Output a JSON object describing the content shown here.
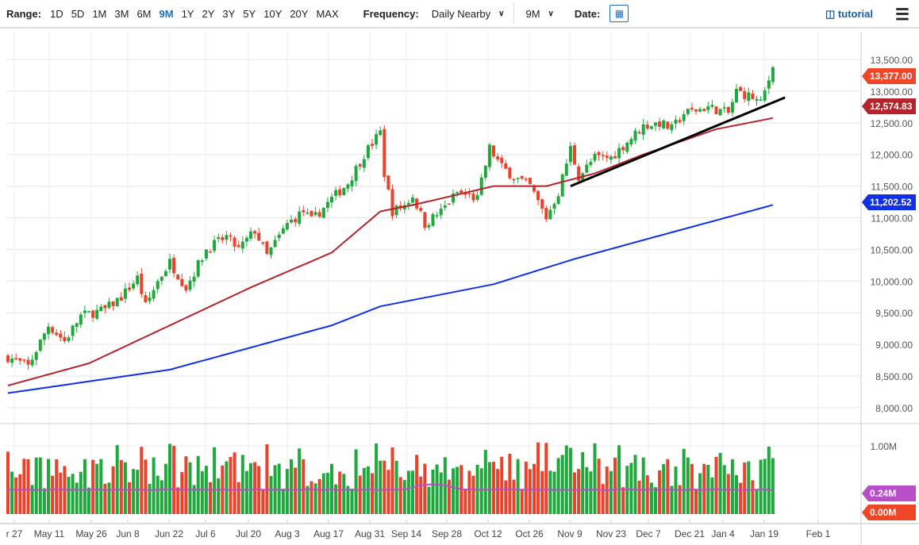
{
  "toolbar": {
    "range_label": "Range:",
    "ranges": [
      "1D",
      "5D",
      "1M",
      "3M",
      "6M",
      "9M",
      "1Y",
      "2Y",
      "3Y",
      "5Y",
      "10Y",
      "20Y",
      "MAX"
    ],
    "active_range": "9M",
    "frequency_label": "Frequency:",
    "frequency_value": "Daily Nearby",
    "period_value": "9M",
    "date_label": "Date:",
    "tutorial_label": "tutorial"
  },
  "colors": {
    "up": "#1fa83c",
    "down": "#e9432b",
    "ma50": "#b5232c",
    "ma200": "#1030e8",
    "vol_ma": "#b94ec9",
    "accent": "#1a6fc4"
  },
  "chart_data": {
    "type": "candlestick",
    "trading_days": 190,
    "price_keypoints": [
      [
        0,
        8800
      ],
      [
        5,
        8650
      ],
      [
        10,
        9300
      ],
      [
        14,
        9050
      ],
      [
        18,
        9450
      ],
      [
        24,
        9550
      ],
      [
        28,
        9750
      ],
      [
        32,
        10050
      ],
      [
        34,
        9600
      ],
      [
        37,
        10000
      ],
      [
        40,
        10300
      ],
      [
        44,
        9900
      ],
      [
        49,
        10500
      ],
      [
        54,
        10700
      ],
      [
        57,
        10500
      ],
      [
        61,
        10800
      ],
      [
        64,
        10400
      ],
      [
        69,
        10900
      ],
      [
        73,
        11100
      ],
      [
        75,
        10950
      ],
      [
        80,
        11300
      ],
      [
        84,
        11550
      ],
      [
        88,
        12000
      ],
      [
        92,
        12350
      ],
      [
        93,
        11700
      ],
      [
        95,
        11100
      ],
      [
        98,
        11200
      ],
      [
        100,
        11350
      ],
      [
        103,
        10900
      ],
      [
        107,
        11100
      ],
      [
        111,
        11400
      ],
      [
        116,
        11300
      ],
      [
        119,
        12100
      ],
      [
        122,
        11800
      ],
      [
        125,
        11650
      ],
      [
        129,
        11500
      ],
      [
        133,
        11000
      ],
      [
        136,
        11400
      ],
      [
        139,
        12100
      ],
      [
        141,
        11650
      ],
      [
        145,
        11950
      ],
      [
        149,
        11950
      ],
      [
        153,
        12200
      ],
      [
        157,
        12450
      ],
      [
        161,
        12500
      ],
      [
        164,
        12400
      ],
      [
        167,
        12650
      ],
      [
        173,
        12750
      ],
      [
        178,
        12650
      ],
      [
        180,
        13000
      ],
      [
        184,
        12900
      ],
      [
        186,
        12800
      ],
      [
        189,
        13377
      ]
    ],
    "ma50_keypoints": [
      [
        0,
        8350
      ],
      [
        20,
        8700
      ],
      [
        40,
        9300
      ],
      [
        60,
        9900
      ],
      [
        80,
        10450
      ],
      [
        92,
        11100
      ],
      [
        100,
        11200
      ],
      [
        120,
        11500
      ],
      [
        133,
        11500
      ],
      [
        145,
        11700
      ],
      [
        157,
        12000
      ],
      [
        175,
        12400
      ],
      [
        189,
        12574.83
      ]
    ],
    "ma200_keypoints": [
      [
        0,
        8230
      ],
      [
        40,
        8600
      ],
      [
        80,
        9300
      ],
      [
        92,
        9600
      ],
      [
        120,
        9950
      ],
      [
        140,
        10350
      ],
      [
        160,
        10700
      ],
      [
        189,
        11202.52
      ]
    ],
    "trendline": [
      [
        139,
        11500
      ],
      [
        192,
        12900
      ]
    ],
    "y_ticks": [
      "13,500.00",
      "13,000.00",
      "12,500.00",
      "12,000.00",
      "11,500.00",
      "11,000.00",
      "10,500.00",
      "10,000.00",
      "9,500.00",
      "9,000.00",
      "8,500.00",
      "8,000.00"
    ],
    "ylim": [
      8000,
      13500
    ],
    "x_ticks": [
      "r 27",
      "May 11",
      "May 26",
      "Jun 8",
      "Jun 22",
      "Jul 6",
      "Jul 20",
      "Aug 3",
      "Aug 17",
      "Aug 31",
      "Sep 14",
      "Sep 28",
      "Oct 12",
      "Oct 26",
      "Nov 9",
      "Nov 23",
      "Dec 7",
      "Dec 21",
      "Jan 4",
      "Jan 19",
      "Feb 1"
    ],
    "last_price": "13,377.00",
    "ma50_value": "12,574.83",
    "ma200_value": "11,202.52",
    "volume": {
      "y_tick": "1.00M",
      "ma_value": "0.24M",
      "zero_value": "0.00M",
      "ma_level": 0.24
    }
  }
}
